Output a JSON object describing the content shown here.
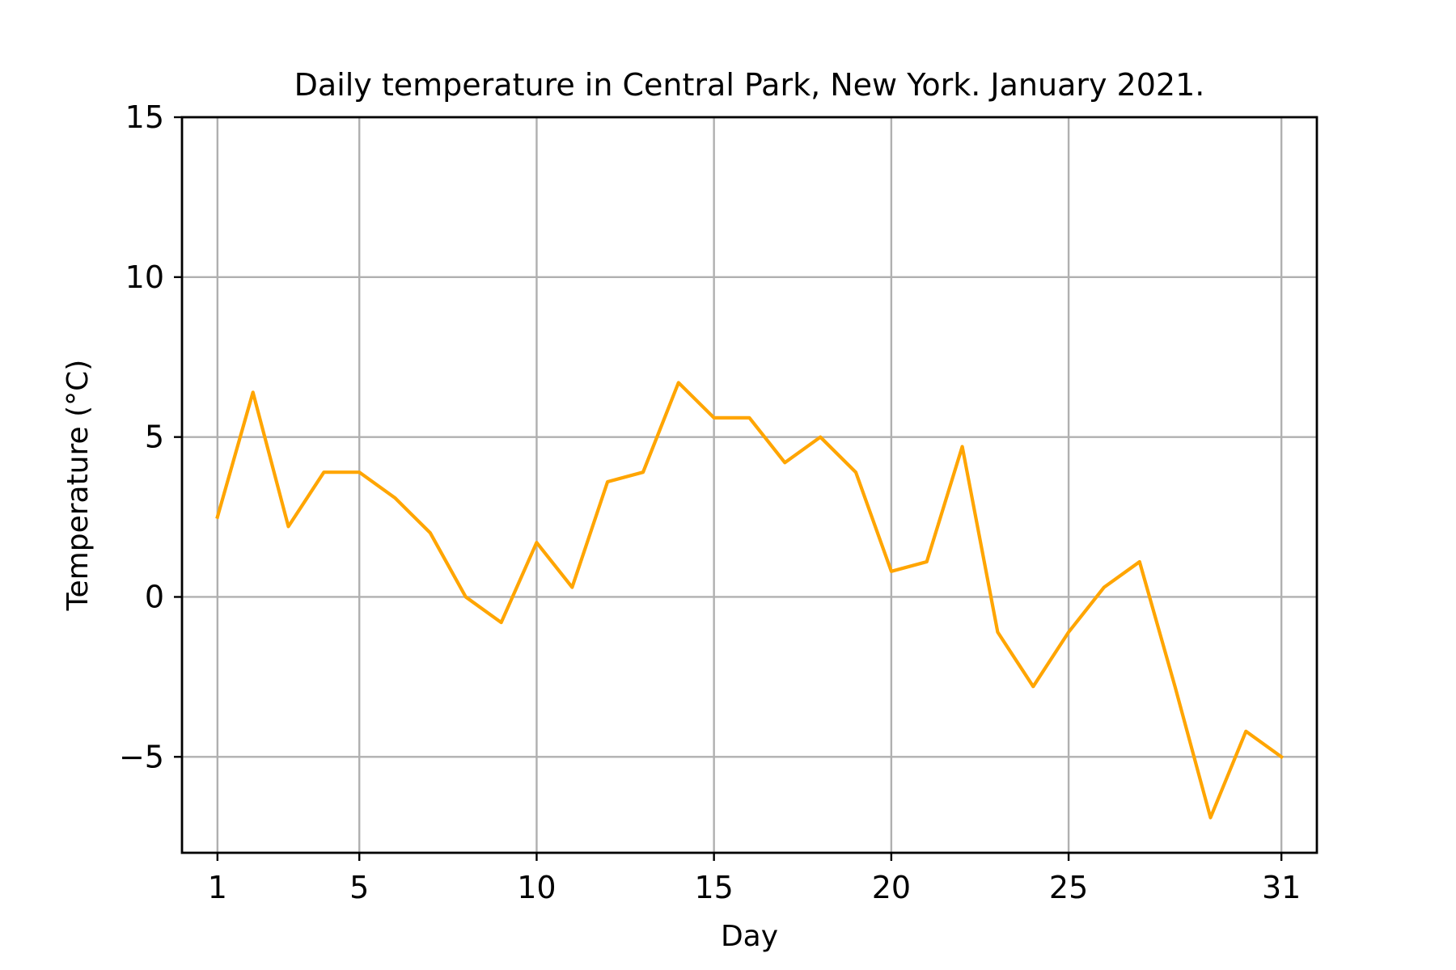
{
  "chart_data": {
    "type": "line",
    "title": "Daily temperature in Central Park, New York. January 2021.",
    "xlabel": "Day",
    "ylabel": "Temperature (°C)",
    "xlim": [
      0,
      32
    ],
    "ylim": [
      -8,
      15
    ],
    "xticks": [
      1,
      5,
      10,
      15,
      20,
      25,
      31
    ],
    "yticks": [
      -5,
      0,
      5,
      10,
      15
    ],
    "ytick_labels": [
      "−5",
      "0",
      "5",
      "10",
      "15"
    ],
    "grid": true,
    "series": [
      {
        "color": "#ffa500",
        "x": [
          1,
          2,
          3,
          4,
          5,
          6,
          7,
          8,
          9,
          10,
          11,
          12,
          13,
          14,
          15,
          16,
          17,
          18,
          19,
          20,
          21,
          22,
          23,
          24,
          25,
          26,
          27,
          28,
          29,
          30,
          31
        ],
        "y": [
          2.5,
          6.4,
          2.2,
          3.9,
          3.9,
          3.1,
          2.0,
          0.0,
          -0.8,
          1.7,
          0.3,
          3.6,
          3.9,
          6.7,
          5.6,
          5.6,
          4.2,
          5.0,
          3.9,
          0.8,
          1.1,
          4.7,
          -1.1,
          -2.8,
          -1.1,
          0.3,
          1.1,
          -2.8,
          -6.9,
          -4.2,
          -5.0
        ]
      }
    ]
  }
}
